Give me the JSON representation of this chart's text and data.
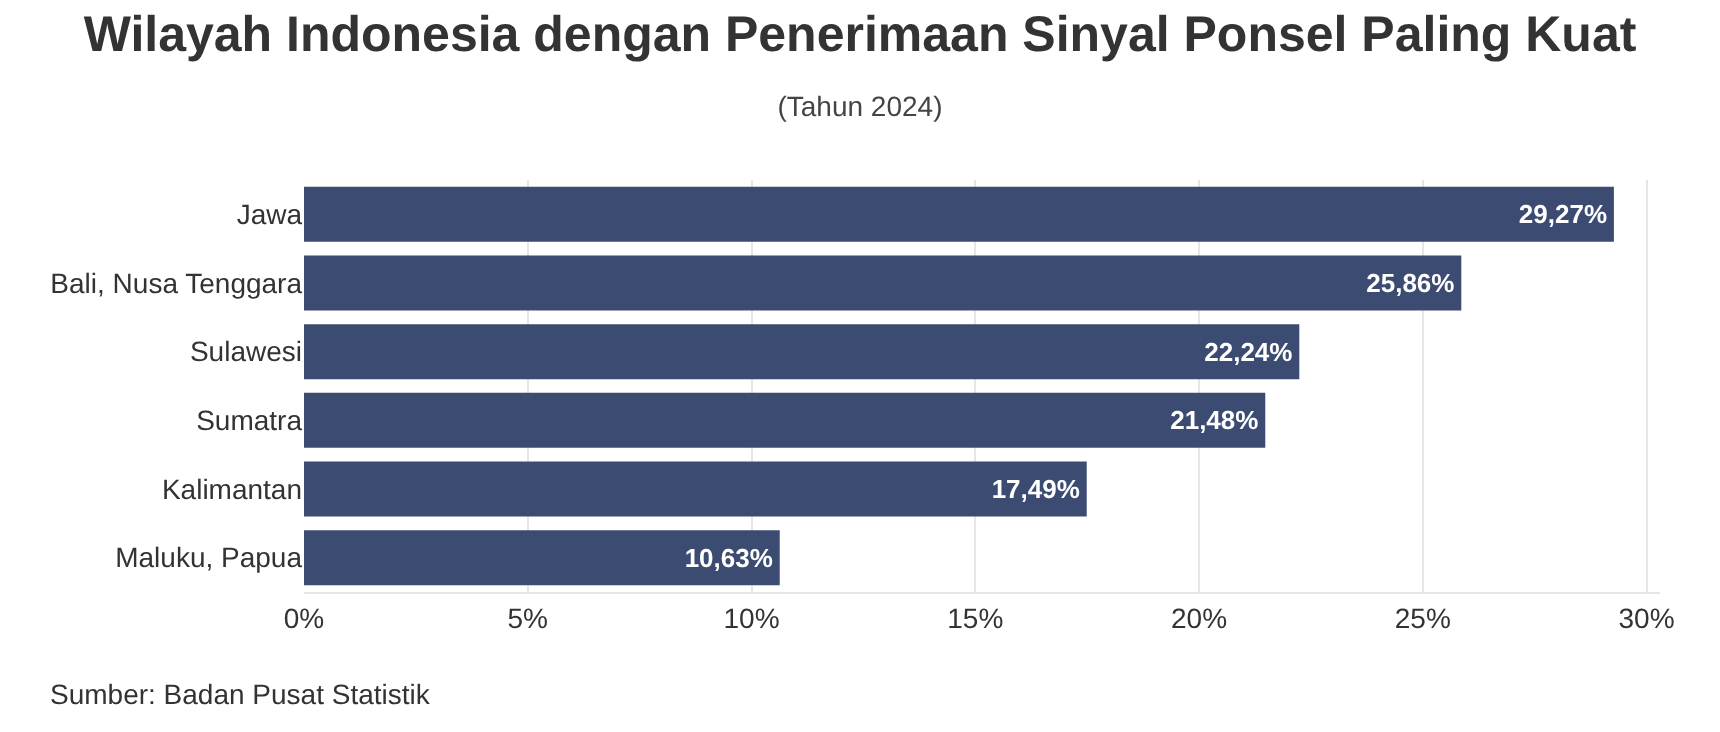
{
  "chart_data": {
    "type": "bar",
    "orientation": "horizontal",
    "title": "Wilayah Indonesia dengan Penerimaan Sinyal Ponsel Paling Kuat",
    "subtitle": "(Tahun 2024)",
    "categories": [
      "Jawa",
      "Bali, Nusa Tenggara",
      "Sulawesi",
      "Sumatra",
      "Kalimantan",
      "Maluku, Papua"
    ],
    "values": [
      29.27,
      25.86,
      22.24,
      21.48,
      17.49,
      10.63
    ],
    "value_labels": [
      "29,27%",
      "25,86%",
      "22,24%",
      "21,48%",
      "17,49%",
      "10,63%"
    ],
    "color": "#3c4b71",
    "xlim": [
      0,
      30.3
    ],
    "xticks": [
      {
        "value": 0,
        "label": "0%"
      },
      {
        "value": 5,
        "label": "5%"
      },
      {
        "value": 10,
        "label": "10%"
      },
      {
        "value": 15,
        "label": "15%"
      },
      {
        "value": 20,
        "label": "20%"
      },
      {
        "value": 25,
        "label": "25%"
      },
      {
        "value": 30,
        "label": "30%"
      }
    ],
    "grid": "x",
    "legend": false,
    "annotations": [
      "Sumber: Badan Pusat Statistik"
    ]
  }
}
